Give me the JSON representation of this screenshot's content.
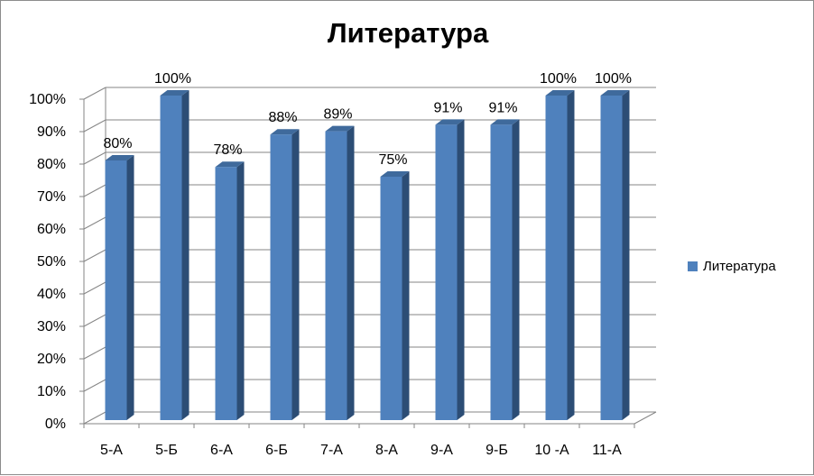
{
  "chart_data": {
    "type": "bar",
    "title": "Литература",
    "categories": [
      "5-А",
      "5-Б",
      "6-А",
      "6-Б",
      "7-А",
      "8-А",
      "9-А",
      "9-Б",
      "10 -А",
      "11-А"
    ],
    "series": [
      {
        "name": "Литература",
        "values": [
          80,
          100,
          78,
          88,
          89,
          75,
          91,
          91,
          100,
          100
        ],
        "labels": [
          "80%",
          "100%",
          "78%",
          "88%",
          "89%",
          "75%",
          "91%",
          "91%",
          "100%",
          "100%"
        ]
      }
    ],
    "ylim": [
      0,
      100
    ],
    "yticks": [
      "0%",
      "10%",
      "20%",
      "30%",
      "40%",
      "50%",
      "60%",
      "70%",
      "80%",
      "90%",
      "100%"
    ],
    "grid": true,
    "legend_position": "right",
    "colors": {
      "bar_front": "#4f81bd",
      "bar_side": "#2c4d75",
      "bar_top": "#3f6a9c",
      "grid": "#868686"
    }
  }
}
